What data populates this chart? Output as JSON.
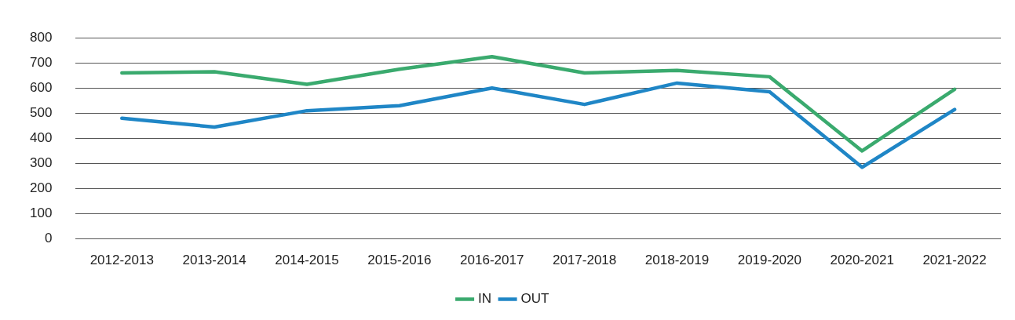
{
  "chart_data": {
    "type": "line",
    "categories": [
      "2012-2013",
      "2013-2014",
      "2014-2015",
      "2015-2016",
      "2016-2017",
      "2017-2018",
      "2018-2019",
      "2019-2020",
      "2020-2021",
      "2021-2022"
    ],
    "series": [
      {
        "name": "IN",
        "color": "#3aaa6e",
        "values": [
          660,
          665,
          615,
          675,
          725,
          660,
          670,
          645,
          350,
          595
        ]
      },
      {
        "name": "OUT",
        "color": "#1f86c6",
        "values": [
          480,
          445,
          510,
          530,
          600,
          535,
          620,
          585,
          285,
          515
        ]
      }
    ],
    "ylim": [
      0,
      800
    ],
    "yticks": [
      0,
      100,
      200,
      300,
      400,
      500,
      600,
      700,
      800
    ],
    "grid": "y",
    "legend": "bottom",
    "marker": "none",
    "line_style": "solid"
  }
}
